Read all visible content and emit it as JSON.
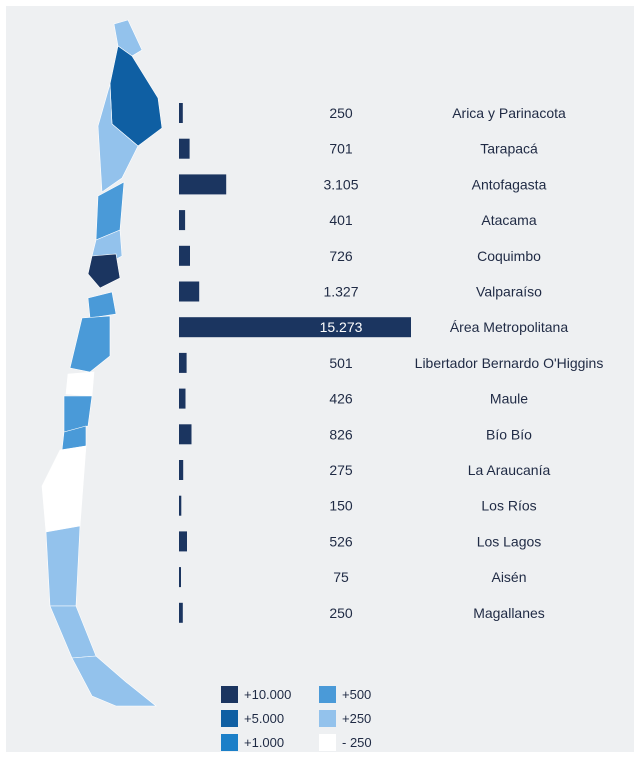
{
  "chart_data": {
    "type": "bar",
    "orientation": "horizontal",
    "categories": [
      "Arica y Parinacota",
      "Tarapacá",
      "Antofagasta",
      "Atacama",
      "Coquimbo",
      "Valparaíso",
      "Área Metropolitana",
      "Libertador Bernardo O'Higgins",
      "Maule",
      "Bío Bío",
      "La Araucanía",
      "Los Ríos",
      "Los Lagos",
      "Aisén",
      "Magallanes"
    ],
    "values": [
      250,
      701,
      3105,
      401,
      726,
      1327,
      15273,
      501,
      426,
      826,
      275,
      150,
      526,
      75,
      250
    ],
    "value_labels": [
      "250",
      "701",
      "3.105",
      "401",
      "726",
      "1.327",
      "15.273",
      "501",
      "426",
      "826",
      "275",
      "150",
      "526",
      "75",
      "250"
    ],
    "bar_color": "#1b3560",
    "legend": [
      {
        "label": "+10.000",
        "color": "#1b3560"
      },
      {
        "label": "+5.000",
        "color": "#0f5fa3"
      },
      {
        "label": "+1.000",
        "color": "#1b7fc8"
      },
      {
        "label": "+500",
        "color": "#4a9ad8"
      },
      {
        "label": "+250",
        "color": "#93c2ec"
      },
      {
        "label": "- 250",
        "color": "#ffffff"
      }
    ],
    "map_region_colors": [
      "#93c2ec",
      "#0f5fa3",
      "#93c2ec",
      "#4a9ad8",
      "#93c2ec",
      "#1b3560",
      "#4a9ad8",
      "#4a9ad8",
      "#ffffff",
      "#4a9ad8",
      "#4a9ad8",
      "#ffffff",
      "#93c2ec",
      "#93c2ec",
      "#93c2ec"
    ],
    "legend_position": "bottom-left"
  }
}
